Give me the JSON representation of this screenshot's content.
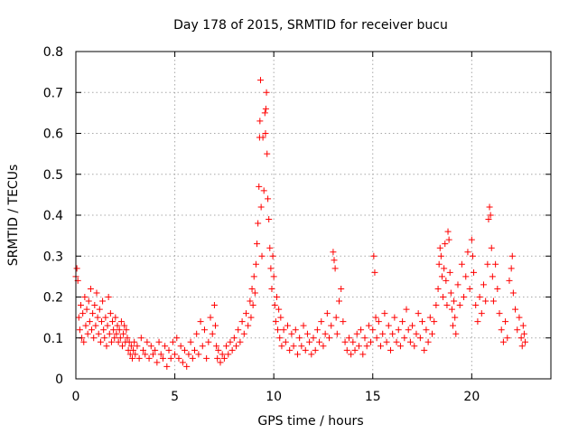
{
  "chart_data": {
    "type": "scatter",
    "title": "Day 178 of 2015, SRMTID for receiver bucu",
    "xlabel": "GPS time / hours",
    "ylabel": "SRMTID / TECUs",
    "xlim": [
      0,
      24
    ],
    "ylim": [
      0,
      0.8
    ],
    "x_ticks": [
      0,
      5,
      10,
      15,
      20
    ],
    "y_ticks": [
      0,
      0.1,
      0.2,
      0.3,
      0.4,
      0.5,
      0.6,
      0.7,
      0.8
    ],
    "x_tick_labels": [
      "0",
      "5",
      "10",
      "15",
      "20"
    ],
    "y_tick_labels": [
      "0",
      "0.1",
      "0.2",
      "0.3",
      "0.4",
      "0.5",
      "0.6",
      "0.7",
      "0.8"
    ],
    "grid": true,
    "marker": "+",
    "marker_color": "#ff0000",
    "series": [
      {
        "name": "SRMTID",
        "points": [
          [
            0.0,
            0.25
          ],
          [
            0.05,
            0.27
          ],
          [
            0.1,
            0.24
          ],
          [
            0.15,
            0.15
          ],
          [
            0.2,
            0.12
          ],
          [
            0.25,
            0.18
          ],
          [
            0.3,
            0.1
          ],
          [
            0.35,
            0.16
          ],
          [
            0.4,
            0.09
          ],
          [
            0.45,
            0.2
          ],
          [
            0.5,
            0.13
          ],
          [
            0.55,
            0.17
          ],
          [
            0.6,
            0.11
          ],
          [
            0.65,
            0.19
          ],
          [
            0.7,
            0.14
          ],
          [
            0.75,
            0.22
          ],
          [
            0.8,
            0.12
          ],
          [
            0.85,
            0.16
          ],
          [
            0.9,
            0.1
          ],
          [
            0.95,
            0.18
          ],
          [
            1.0,
            0.13
          ],
          [
            1.05,
            0.21
          ],
          [
            1.1,
            0.15
          ],
          [
            1.15,
            0.11
          ],
          [
            1.2,
            0.17
          ],
          [
            1.25,
            0.09
          ],
          [
            1.3,
            0.14
          ],
          [
            1.35,
            0.19
          ],
          [
            1.4,
            0.12
          ],
          [
            1.45,
            0.1
          ],
          [
            1.5,
            0.15
          ],
          [
            1.55,
            0.08
          ],
          [
            1.6,
            0.13
          ],
          [
            1.65,
            0.2
          ],
          [
            1.7,
            0.11
          ],
          [
            1.75,
            0.16
          ],
          [
            1.8,
            0.09
          ],
          [
            1.85,
            0.14
          ],
          [
            1.9,
            0.12
          ],
          [
            1.95,
            0.1
          ],
          [
            2.0,
            0.15
          ],
          [
            2.05,
            0.11
          ],
          [
            2.1,
            0.13
          ],
          [
            2.15,
            0.09
          ],
          [
            2.2,
            0.12
          ],
          [
            2.25,
            0.1
          ],
          [
            2.3,
            0.14
          ],
          [
            2.35,
            0.08
          ],
          [
            2.4,
            0.11
          ],
          [
            2.45,
            0.13
          ],
          [
            2.5,
            0.09
          ],
          [
            2.55,
            0.12
          ],
          [
            2.6,
            0.1
          ],
          [
            2.65,
            0.07
          ],
          [
            2.7,
            0.09
          ],
          [
            2.75,
            0.06
          ],
          [
            2.8,
            0.08
          ],
          [
            2.85,
            0.05
          ],
          [
            2.9,
            0.07
          ],
          [
            2.95,
            0.09
          ],
          [
            3.0,
            0.06
          ],
          [
            3.1,
            0.08
          ],
          [
            3.2,
            0.05
          ],
          [
            3.3,
            0.1
          ],
          [
            3.4,
            0.07
          ],
          [
            3.5,
            0.06
          ],
          [
            3.6,
            0.09
          ],
          [
            3.7,
            0.05
          ],
          [
            3.8,
            0.08
          ],
          [
            3.9,
            0.06
          ],
          [
            4.0,
            0.07
          ],
          [
            4.1,
            0.04
          ],
          [
            4.2,
            0.09
          ],
          [
            4.3,
            0.06
          ],
          [
            4.4,
            0.05
          ],
          [
            4.5,
            0.08
          ],
          [
            4.6,
            0.03
          ],
          [
            4.7,
            0.07
          ],
          [
            4.8,
            0.05
          ],
          [
            4.9,
            0.09
          ],
          [
            5.0,
            0.06
          ],
          [
            5.1,
            0.1
          ],
          [
            5.2,
            0.05
          ],
          [
            5.3,
            0.08
          ],
          [
            5.4,
            0.04
          ],
          [
            5.5,
            0.07
          ],
          [
            5.6,
            0.03
          ],
          [
            5.7,
            0.06
          ],
          [
            5.8,
            0.09
          ],
          [
            5.9,
            0.05
          ],
          [
            6.0,
            0.07
          ],
          [
            6.1,
            0.11
          ],
          [
            6.2,
            0.06
          ],
          [
            6.3,
            0.14
          ],
          [
            6.4,
            0.08
          ],
          [
            6.5,
            0.12
          ],
          [
            6.6,
            0.05
          ],
          [
            6.7,
            0.09
          ],
          [
            6.8,
            0.15
          ],
          [
            6.9,
            0.11
          ],
          [
            7.0,
            0.18
          ],
          [
            7.05,
            0.13
          ],
          [
            7.1,
            0.08
          ],
          [
            7.15,
            0.05
          ],
          [
            7.2,
            0.07
          ],
          [
            7.3,
            0.04
          ],
          [
            7.4,
            0.06
          ],
          [
            7.5,
            0.05
          ],
          [
            7.6,
            0.08
          ],
          [
            7.7,
            0.06
          ],
          [
            7.8,
            0.09
          ],
          [
            7.9,
            0.07
          ],
          [
            8.0,
            0.1
          ],
          [
            8.1,
            0.08
          ],
          [
            8.2,
            0.12
          ],
          [
            8.3,
            0.09
          ],
          [
            8.4,
            0.14
          ],
          [
            8.5,
            0.11
          ],
          [
            8.6,
            0.16
          ],
          [
            8.7,
            0.13
          ],
          [
            8.8,
            0.19
          ],
          [
            8.85,
            0.15
          ],
          [
            8.9,
            0.22
          ],
          [
            8.95,
            0.18
          ],
          [
            9.0,
            0.25
          ],
          [
            9.05,
            0.21
          ],
          [
            9.1,
            0.28
          ],
          [
            9.15,
            0.33
          ],
          [
            9.2,
            0.38
          ],
          [
            9.25,
            0.47
          ],
          [
            9.28,
            0.59
          ],
          [
            9.3,
            0.63
          ],
          [
            9.33,
            0.73
          ],
          [
            9.36,
            0.42
          ],
          [
            9.4,
            0.3
          ],
          [
            9.45,
            0.59
          ],
          [
            9.5,
            0.46
          ],
          [
            9.55,
            0.65
          ],
          [
            9.58,
            0.6
          ],
          [
            9.6,
            0.66
          ],
          [
            9.63,
            0.7
          ],
          [
            9.66,
            0.55
          ],
          [
            9.7,
            0.44
          ],
          [
            9.75,
            0.39
          ],
          [
            9.8,
            0.32
          ],
          [
            9.85,
            0.27
          ],
          [
            9.9,
            0.22
          ],
          [
            9.95,
            0.3
          ],
          [
            10.0,
            0.25
          ],
          [
            10.05,
            0.18
          ],
          [
            10.1,
            0.14
          ],
          [
            10.15,
            0.2
          ],
          [
            10.2,
            0.12
          ],
          [
            10.25,
            0.17
          ],
          [
            10.3,
            0.1
          ],
          [
            10.35,
            0.15
          ],
          [
            10.4,
            0.08
          ],
          [
            10.5,
            0.12
          ],
          [
            10.6,
            0.09
          ],
          [
            10.7,
            0.13
          ],
          [
            10.8,
            0.07
          ],
          [
            10.9,
            0.11
          ],
          [
            11.0,
            0.08
          ],
          [
            11.1,
            0.12
          ],
          [
            11.2,
            0.06
          ],
          [
            11.3,
            0.1
          ],
          [
            11.4,
            0.08
          ],
          [
            11.5,
            0.13
          ],
          [
            11.6,
            0.07
          ],
          [
            11.7,
            0.11
          ],
          [
            11.8,
            0.09
          ],
          [
            11.9,
            0.06
          ],
          [
            12.0,
            0.1
          ],
          [
            12.1,
            0.07
          ],
          [
            12.2,
            0.12
          ],
          [
            12.3,
            0.09
          ],
          [
            12.4,
            0.14
          ],
          [
            12.5,
            0.08
          ],
          [
            12.6,
            0.11
          ],
          [
            12.7,
            0.16
          ],
          [
            12.8,
            0.1
          ],
          [
            12.9,
            0.13
          ],
          [
            13.0,
            0.31
          ],
          [
            13.05,
            0.29
          ],
          [
            13.1,
            0.27
          ],
          [
            13.15,
            0.15
          ],
          [
            13.2,
            0.11
          ],
          [
            13.3,
            0.19
          ],
          [
            13.4,
            0.22
          ],
          [
            13.5,
            0.14
          ],
          [
            13.6,
            0.09
          ],
          [
            13.7,
            0.07
          ],
          [
            13.8,
            0.1
          ],
          [
            13.9,
            0.06
          ],
          [
            14.0,
            0.09
          ],
          [
            14.1,
            0.07
          ],
          [
            14.2,
            0.11
          ],
          [
            14.3,
            0.08
          ],
          [
            14.4,
            0.12
          ],
          [
            14.5,
            0.06
          ],
          [
            14.6,
            0.1
          ],
          [
            14.7,
            0.08
          ],
          [
            14.8,
            0.13
          ],
          [
            14.9,
            0.09
          ],
          [
            15.0,
            0.12
          ],
          [
            15.05,
            0.3
          ],
          [
            15.1,
            0.26
          ],
          [
            15.15,
            0.15
          ],
          [
            15.2,
            0.1
          ],
          [
            15.3,
            0.14
          ],
          [
            15.4,
            0.08
          ],
          [
            15.5,
            0.11
          ],
          [
            15.6,
            0.16
          ],
          [
            15.7,
            0.09
          ],
          [
            15.8,
            0.13
          ],
          [
            15.9,
            0.07
          ],
          [
            16.0,
            0.11
          ],
          [
            16.1,
            0.15
          ],
          [
            16.2,
            0.09
          ],
          [
            16.3,
            0.12
          ],
          [
            16.4,
            0.08
          ],
          [
            16.5,
            0.14
          ],
          [
            16.6,
            0.1
          ],
          [
            16.7,
            0.17
          ],
          [
            16.8,
            0.12
          ],
          [
            16.9,
            0.09
          ],
          [
            17.0,
            0.13
          ],
          [
            17.1,
            0.08
          ],
          [
            17.2,
            0.11
          ],
          [
            17.3,
            0.16
          ],
          [
            17.4,
            0.1
          ],
          [
            17.5,
            0.14
          ],
          [
            17.6,
            0.07
          ],
          [
            17.7,
            0.12
          ],
          [
            17.8,
            0.09
          ],
          [
            17.9,
            0.15
          ],
          [
            18.0,
            0.11
          ],
          [
            18.1,
            0.14
          ],
          [
            18.2,
            0.18
          ],
          [
            18.3,
            0.22
          ],
          [
            18.35,
            0.28
          ],
          [
            18.4,
            0.32
          ],
          [
            18.45,
            0.3
          ],
          [
            18.5,
            0.25
          ],
          [
            18.55,
            0.2
          ],
          [
            18.6,
            0.27
          ],
          [
            18.65,
            0.33
          ],
          [
            18.7,
            0.24
          ],
          [
            18.75,
            0.18
          ],
          [
            18.8,
            0.36
          ],
          [
            18.85,
            0.34
          ],
          [
            18.9,
            0.26
          ],
          [
            18.95,
            0.21
          ],
          [
            19.0,
            0.17
          ],
          [
            19.05,
            0.13
          ],
          [
            19.1,
            0.19
          ],
          [
            19.15,
            0.15
          ],
          [
            19.2,
            0.11
          ],
          [
            19.3,
            0.23
          ],
          [
            19.4,
            0.18
          ],
          [
            19.5,
            0.28
          ],
          [
            19.6,
            0.2
          ],
          [
            19.7,
            0.25
          ],
          [
            19.8,
            0.31
          ],
          [
            19.9,
            0.22
          ],
          [
            20.0,
            0.34
          ],
          [
            20.05,
            0.3
          ],
          [
            20.1,
            0.26
          ],
          [
            20.2,
            0.18
          ],
          [
            20.3,
            0.14
          ],
          [
            20.4,
            0.2
          ],
          [
            20.5,
            0.16
          ],
          [
            20.6,
            0.23
          ],
          [
            20.7,
            0.19
          ],
          [
            20.8,
            0.28
          ],
          [
            20.85,
            0.39
          ],
          [
            20.9,
            0.42
          ],
          [
            20.95,
            0.4
          ],
          [
            21.0,
            0.32
          ],
          [
            21.05,
            0.25
          ],
          [
            21.1,
            0.19
          ],
          [
            21.2,
            0.28
          ],
          [
            21.3,
            0.22
          ],
          [
            21.4,
            0.16
          ],
          [
            21.5,
            0.12
          ],
          [
            21.6,
            0.09
          ],
          [
            21.7,
            0.14
          ],
          [
            21.8,
            0.1
          ],
          [
            21.9,
            0.24
          ],
          [
            22.0,
            0.27
          ],
          [
            22.05,
            0.3
          ],
          [
            22.1,
            0.21
          ],
          [
            22.2,
            0.17
          ],
          [
            22.3,
            0.12
          ],
          [
            22.4,
            0.15
          ],
          [
            22.5,
            0.1
          ],
          [
            22.55,
            0.08
          ],
          [
            22.6,
            0.13
          ],
          [
            22.65,
            0.11
          ],
          [
            22.7,
            0.09
          ]
        ]
      }
    ]
  }
}
